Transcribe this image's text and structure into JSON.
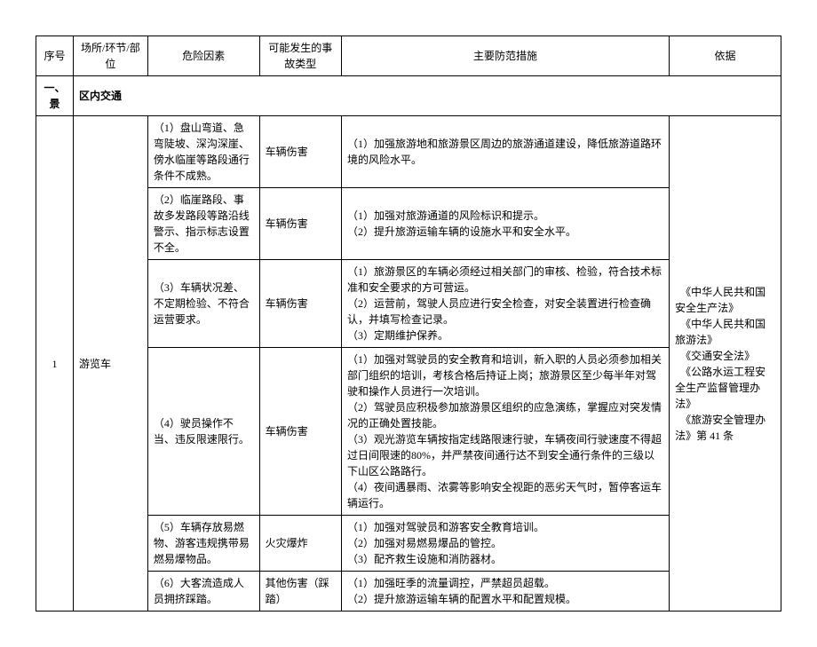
{
  "header": {
    "c0": "序号",
    "c1": "场所/环节/部位",
    "c2": "危险因素",
    "c3": "可能发生的事故类型",
    "c4": "主要防范措施",
    "c5": "依据"
  },
  "section": {
    "num": "一、景",
    "title": "区内交通"
  },
  "body": {
    "num": "1",
    "place": "游览车",
    "rows": [
      {
        "hazard": "（1）盘山弯道、急弯陡坡、深沟深崖、傍水临崖等路段通行条件不成熟。",
        "type": "车辆伤害",
        "measure": "（1）加强旅游地和旅游景区周边的旅游通道建设，降低旅游道路环境的风险水平。"
      },
      {
        "hazard": "（2）临崖路段、事故多发路段等路沿线警示、指示标志设置不全。",
        "type": "车辆伤害",
        "measure": "（1）加强对旅游通道的风险标识和提示。\n（2）提升旅游运输车辆的设施水平和安全水平。"
      },
      {
        "hazard": "（3）车辆状况差、不定期检验、不符合运营要求。",
        "type": "车辆伤害",
        "measure": "（1）旅游景区的车辆必须经过相关部门的审核、检验，符合技术标准和安全要求的方可营运。\n（2）运营前，驾驶人员应进行安全检查，对安全装置进行检查确认，并填写检查记录。\n（3）定期维护保养。"
      },
      {
        "hazard": "（4）驶员操作不当、违反限速限行。",
        "type": "车辆伤害",
        "measure": "（1）加强对驾驶员的安全教育和培训，新入职的人员必须参加相关部门组织的培训，考核合格后持证上岗；旅游景区至少每半年对驾驶和操作人员进行一次培训。\n（2）驾驶员应积极参加旅游景区组织的应急演练，掌握应对突发情况的正确处置技能。\n（3）观光游览车辆按指定线路限速行驶，车辆夜间行驶速度不得超过日间限速的80%，并严禁夜间通行达不到安全通行条件的三级以下山区公路路行。\n（4）夜间遇暴雨、浓雾等影响安全视距的恶劣天气时，暂停客运车辆运行。"
      },
      {
        "hazard": "（5）车辆存放易燃物、游客违规携带易燃易爆物品。",
        "type": "火灾爆炸",
        "measure": "（1）加强对驾驶员和游客安全教育培训。\n（2）加强对易燃易爆品的管控。\n（3）配齐救生设施和消防器材。"
      },
      {
        "hazard": "（6）大客流造成人员拥挤踩踏。",
        "type": "其他伤害（踩踏）",
        "measure": "（1）加强旺季的流量调控，严禁超员超载。\n（2）提升旅游运输车辆的配置水平和配置规模。"
      }
    ],
    "basis": "　《中华人民共和国安全生产法》\n　《中华人民共和国旅游法》\n　《交通安全法》\n　《公路水运工程安全生产监督管理办法》\n　《旅游安全管理办法》第 41 条"
  }
}
